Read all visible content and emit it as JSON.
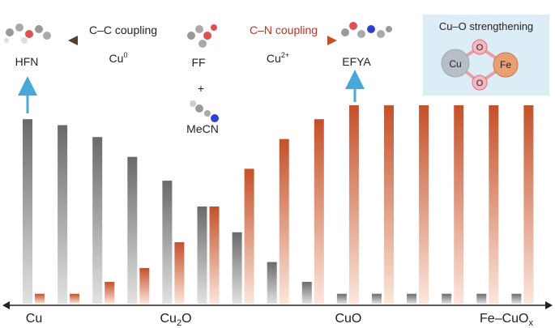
{
  "chart_data": {
    "type": "bar",
    "categories": [
      "Cu",
      null,
      null,
      null,
      {
        "base": "Cu",
        "sub": "2",
        "rest": "O"
      },
      null,
      null,
      null,
      null,
      "CuO",
      null,
      null,
      null,
      null,
      {
        "base": "Fe–CuO",
        "sub": "x"
      }
    ],
    "series": [
      {
        "color": "#6a6a6a",
        "values": [
          93,
          90,
          84,
          74,
          62,
          49,
          36,
          21,
          11,
          5,
          5,
          5,
          5,
          5,
          5
        ]
      },
      {
        "color": "#c4512a",
        "values": [
          5,
          5,
          11,
          18,
          31,
          49,
          68,
          83,
          93,
          100,
          100,
          100,
          100,
          100,
          100
        ]
      }
    ],
    "ylim": [
      0,
      100
    ]
  },
  "annotations": {
    "cc_coupling": "C–C coupling",
    "cc_catalyst": {
      "base": "Cu",
      "sup": "0"
    },
    "cn_coupling": "C–N coupling",
    "cn_catalyst": {
      "base": "Cu",
      "sup": "2+"
    },
    "reactant": "FF",
    "product_left": "HFN",
    "product_right": "EFYA",
    "plus": "+",
    "co_reactant": "MeCN",
    "inset": {
      "title": "Cu–O strengthening",
      "atoms": [
        "Cu",
        "O",
        "Fe",
        "O"
      ]
    }
  }
}
